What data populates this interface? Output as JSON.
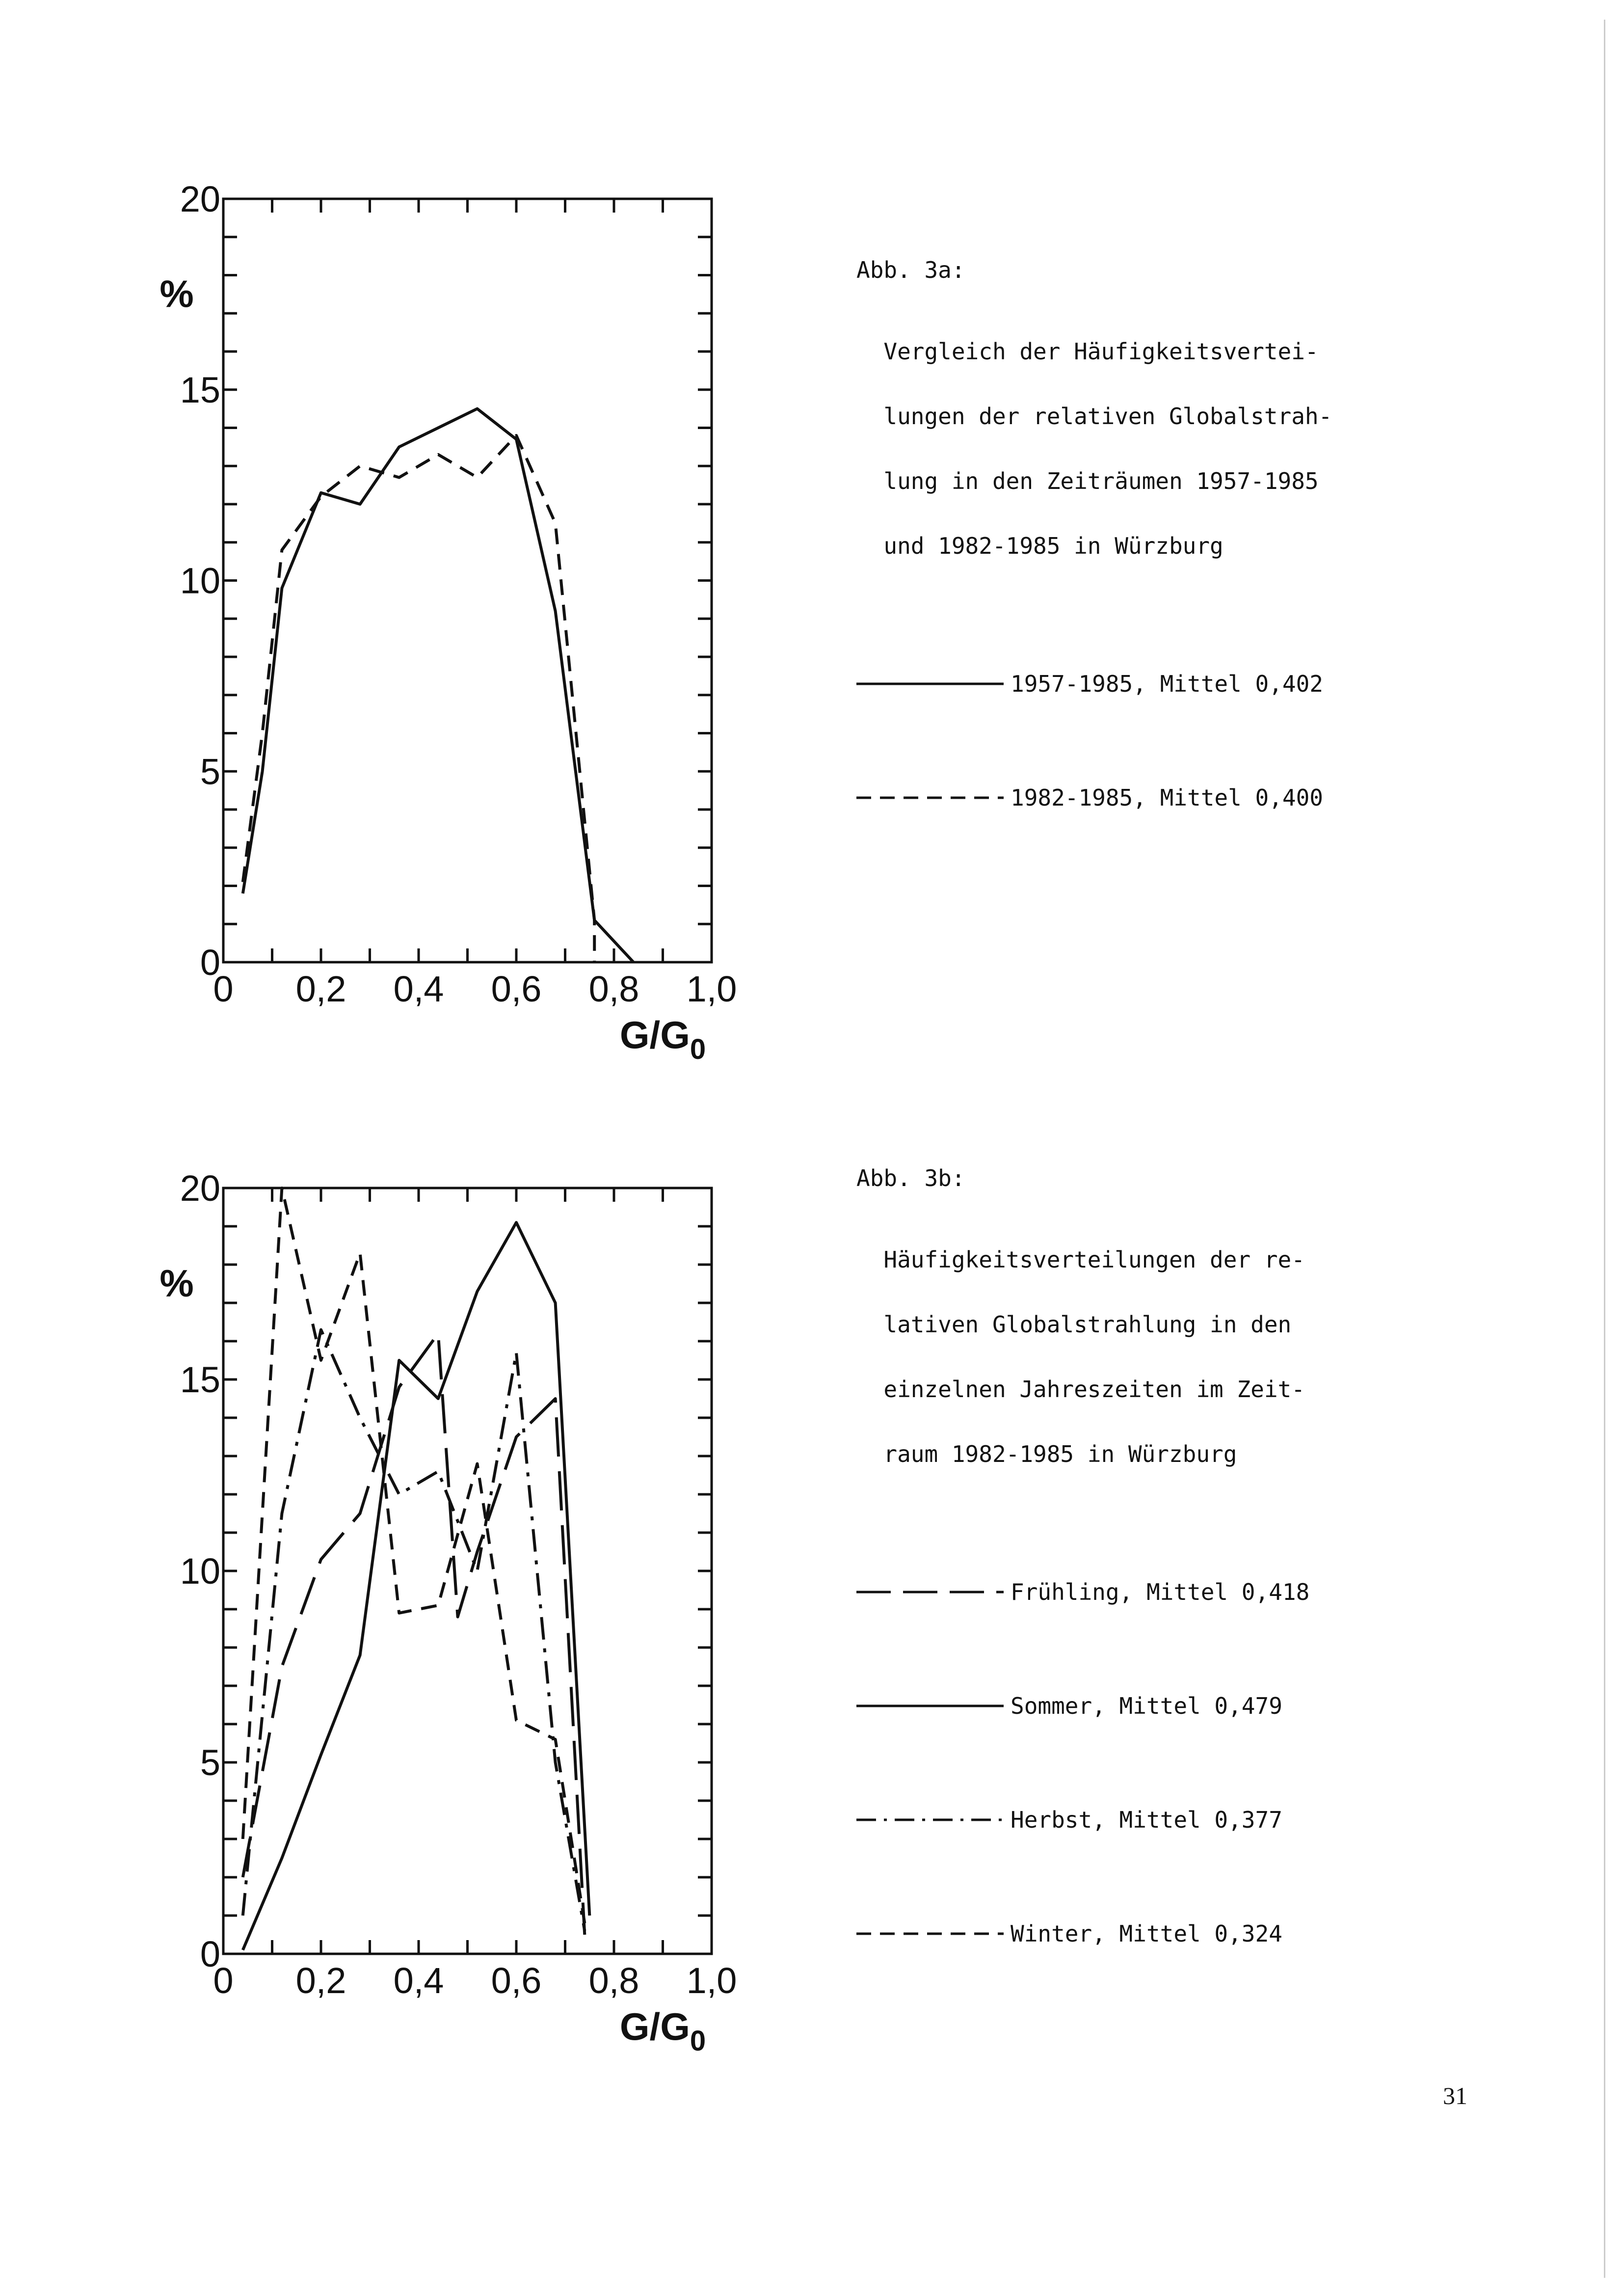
{
  "page_number": "31",
  "captions": [
    {
      "title": "Abb. 3a:",
      "text_lines": [
        "Vergleich der Häufigkeitsvertei-",
        "lungen der relativen Globalstrah-",
        "lung in den Zeiträumen 1957-1985",
        "und 1982-1985 in Würzburg"
      ],
      "legend": [
        {
          "label": "1957-1985, Mittel 0,402",
          "style": "solid"
        },
        {
          "label": "1982-1985, Mittel 0,400",
          "style": "dashed"
        }
      ]
    },
    {
      "title": "Abb. 3b:",
      "text_lines": [
        "Häufigkeitsverteilungen der re-",
        "lativen Globalstrahlung in den",
        "einzelnen Jahreszeiten im Zeit-",
        "raum 1982-1985 in Würzburg"
      ],
      "legend": [
        {
          "label": "Frühling, Mittel 0,418",
          "style": "longdash"
        },
        {
          "label": "Sommer, Mittel 0,479",
          "style": "solid"
        },
        {
          "label": "Herbst, Mittel 0,377",
          "style": "dashdot"
        },
        {
          "label": "Winter, Mittel 0,324",
          "style": "dashed"
        }
      ]
    }
  ],
  "chart_data": [
    {
      "type": "line",
      "y_unit": "%",
      "x_unit_main": "G/G",
      "x_unit_sub": "0",
      "xlim": [
        0,
        1.0
      ],
      "ylim": [
        0,
        20
      ],
      "x_ticks": [
        0,
        0.1,
        0.2,
        0.3,
        0.4,
        0.5,
        0.6,
        0.7,
        0.8,
        0.9,
        1.0
      ],
      "y_ticks": [
        0,
        1,
        2,
        3,
        4,
        5,
        6,
        7,
        8,
        9,
        10,
        11,
        12,
        13,
        14,
        15,
        16,
        17,
        18,
        19,
        20
      ],
      "x_tick_labels": [
        {
          "x": 0,
          "label": "0"
        },
        {
          "x": 0.2,
          "label": "0,2"
        },
        {
          "x": 0.4,
          "label": "0,4"
        },
        {
          "x": 0.6,
          "label": "0,6"
        },
        {
          "x": 0.8,
          "label": "0,8"
        },
        {
          "x": 1.0,
          "label": "1,0"
        }
      ],
      "y_tick_labels": [
        {
          "y": 0,
          "label": "0"
        },
        {
          "y": 5,
          "label": "5"
        },
        {
          "y": 10,
          "label": "10"
        },
        {
          "y": 15,
          "label": "15"
        },
        {
          "y": 20,
          "label": "20"
        }
      ],
      "series": [
        {
          "name": "1957-1985, Mittel 0,402",
          "style": "solid",
          "x": [
            0.04,
            0.08,
            0.12,
            0.2,
            0.28,
            0.36,
            0.44,
            0.52,
            0.6,
            0.68,
            0.76,
            0.84
          ],
          "y": [
            1.8,
            5.0,
            9.8,
            12.3,
            12.0,
            13.5,
            14.0,
            14.5,
            13.7,
            9.2,
            1.1,
            0.0
          ]
        },
        {
          "name": "1982-1985, Mittel 0,400",
          "style": "dashed",
          "x": [
            0.04,
            0.08,
            0.12,
            0.2,
            0.28,
            0.36,
            0.44,
            0.52,
            0.6,
            0.68,
            0.76,
            0.76
          ],
          "y": [
            2.1,
            6.0,
            10.8,
            12.2,
            13.0,
            12.7,
            13.3,
            12.7,
            13.8,
            11.5,
            1.1,
            0.0
          ]
        }
      ]
    },
    {
      "type": "line",
      "y_unit": "%",
      "x_unit_main": "G/G",
      "x_unit_sub": "0",
      "xlim": [
        0,
        1.0
      ],
      "ylim": [
        0,
        20
      ],
      "x_ticks": [
        0,
        0.1,
        0.2,
        0.3,
        0.4,
        0.5,
        0.6,
        0.7,
        0.8,
        0.9,
        1.0
      ],
      "y_ticks": [
        0,
        1,
        2,
        3,
        4,
        5,
        6,
        7,
        8,
        9,
        10,
        11,
        12,
        13,
        14,
        15,
        16,
        17,
        18,
        19,
        20
      ],
      "x_tick_labels": [
        {
          "x": 0,
          "label": "0"
        },
        {
          "x": 0.2,
          "label": "0,2"
        },
        {
          "x": 0.4,
          "label": "0,4"
        },
        {
          "x": 0.6,
          "label": "0,6"
        },
        {
          "x": 0.8,
          "label": "0,8"
        },
        {
          "x": 1.0,
          "label": "1,0"
        }
      ],
      "y_tick_labels": [
        {
          "y": 0,
          "label": "0"
        },
        {
          "y": 5,
          "label": "5"
        },
        {
          "y": 10,
          "label": "10"
        },
        {
          "y": 15,
          "label": "15"
        },
        {
          "y": 20,
          "label": "20"
        }
      ],
      "series": [
        {
          "name": "Frühling, Mittel 0,418",
          "style": "longdash",
          "x": [
            0.04,
            0.12,
            0.2,
            0.28,
            0.36,
            0.44,
            0.48,
            0.52,
            0.6,
            0.68,
            0.74
          ],
          "y": [
            2.0,
            7.5,
            10.3,
            11.5,
            14.8,
            16.2,
            8.8,
            10.5,
            13.5,
            14.5,
            0.5
          ]
        },
        {
          "name": "Sommer, Mittel 0,479",
          "style": "solid",
          "x": [
            0.04,
            0.12,
            0.2,
            0.28,
            0.36,
            0.44,
            0.52,
            0.6,
            0.68,
            0.75
          ],
          "y": [
            0.1,
            2.5,
            5.2,
            7.8,
            15.5,
            14.5,
            17.3,
            19.1,
            17.0,
            1.0
          ]
        },
        {
          "name": "Herbst, Mittel 0,377",
          "style": "dashdot",
          "x": [
            0.04,
            0.12,
            0.2,
            0.28,
            0.36,
            0.44,
            0.52,
            0.6,
            0.68,
            0.74
          ],
          "y": [
            1.0,
            11.5,
            16.3,
            14.0,
            12.0,
            12.6,
            10.0,
            15.7,
            5.0,
            0.6
          ]
        },
        {
          "name": "Winter, Mittel 0,324",
          "style": "dashed",
          "x": [
            0.04,
            0.12,
            0.2,
            0.28,
            0.36,
            0.44,
            0.52,
            0.6,
            0.68,
            0.74
          ],
          "y": [
            3.0,
            20.0,
            15.5,
            18.3,
            8.9,
            9.1,
            12.8,
            6.1,
            5.6,
            0.8
          ]
        }
      ]
    }
  ]
}
